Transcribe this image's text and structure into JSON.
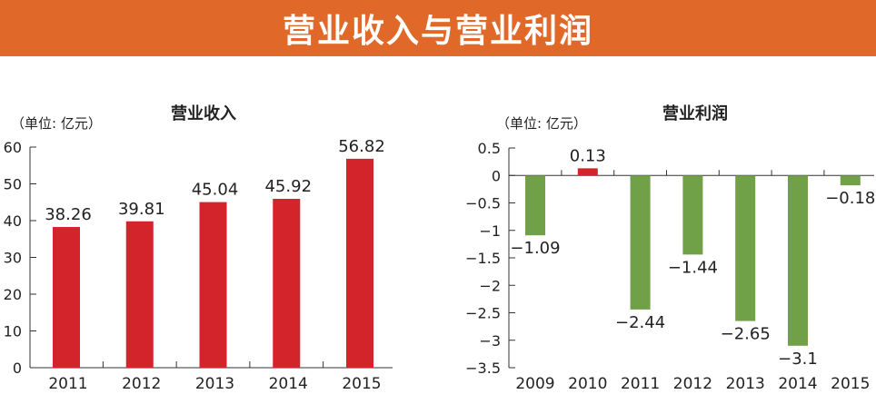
{
  "banner": {
    "title": "营业收入与营业利润"
  },
  "colors": {
    "banner_bg": "#e0692a",
    "revenue_bar": "#d3232b",
    "profit_positive": "#d3232b",
    "profit_negative": "#70a047"
  },
  "chart_data": [
    {
      "type": "bar",
      "title": "营业收入",
      "unit_label": "（单位: 亿元）",
      "categories": [
        "2011",
        "2012",
        "2013",
        "2014",
        "2015"
      ],
      "values": [
        38.26,
        39.81,
        45.04,
        45.92,
        56.82
      ],
      "value_labels": [
        "38.26",
        "39.81",
        "45.04",
        "45.92",
        "56.82"
      ],
      "yticks": [
        "0",
        "10",
        "20",
        "30",
        "40",
        "50",
        "60"
      ],
      "ylim": [
        0,
        60
      ],
      "grid": false
    },
    {
      "type": "bar",
      "title": "营业利润",
      "unit_label": "（单位: 亿元）",
      "categories": [
        "2009",
        "2010",
        "2011",
        "2012",
        "2013",
        "2014",
        "2015"
      ],
      "values": [
        -1.09,
        0.13,
        -2.44,
        -1.44,
        -2.65,
        -3.1,
        -0.18
      ],
      "value_labels": [
        "−1.09",
        "0.13",
        "−2.44",
        "−1.44",
        "−2.65",
        "−3.1",
        "−0.18"
      ],
      "yticks": [
        "0.5",
        "0",
        "−0.5",
        "−1",
        "−1.5",
        "−2",
        "−2.5",
        "−3",
        "−3.5"
      ],
      "ylim": [
        -3.5,
        0.5
      ],
      "grid": false
    }
  ]
}
